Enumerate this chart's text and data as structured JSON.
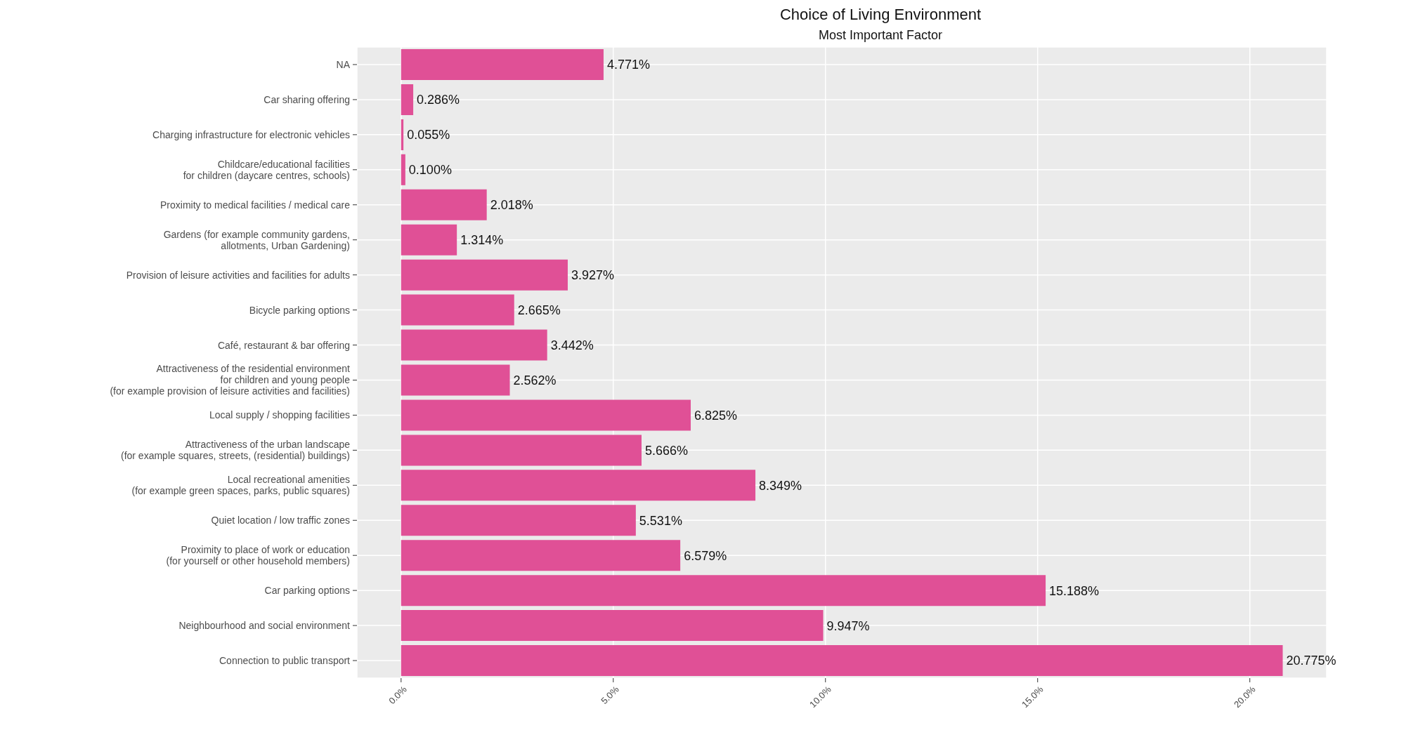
{
  "chart_data": {
    "type": "bar",
    "orientation": "horizontal",
    "title": "Choice of Living Environment",
    "subtitle": "Most Important Factor",
    "categories": [
      "NA",
      "Car sharing offering",
      "Charging infrastructure for electronic vehicles",
      "Childcare/educational facilities\nfor children (daycare centres, schools)",
      "Proximity to medical facilities / medical care",
      "Gardens (for example community gardens,\nallotments, Urban Gardening)",
      "Provision of leisure activities and facilities for adults",
      "Bicycle parking options",
      "Café, restaurant & bar offering",
      "Attractiveness of the residential environment\nfor children and young people\n(for example provision of leisure activities and facilities)",
      "Local supply / shopping facilities",
      "Attractiveness of the urban landscape\n(for example squares, streets, (residential) buildings)",
      "Local recreational amenities\n(for example green spaces, parks, public squares)",
      "Quiet location / low traffic zones",
      "Proximity to place of work or education\n(for yourself or other household members)",
      "Car parking options",
      "Neighbourhood and social environment",
      "Connection to public transport"
    ],
    "values": [
      4.771,
      0.286,
      0.055,
      0.1,
      2.018,
      1.314,
      3.927,
      2.665,
      3.442,
      2.562,
      6.825,
      5.666,
      8.349,
      5.531,
      6.579,
      15.188,
      9.947,
      20.775
    ],
    "value_labels": [
      "4.771%",
      "0.286%",
      "0.055%",
      "0.100%",
      "2.018%",
      "1.314%",
      "3.927%",
      "2.665%",
      "3.442%",
      "2.562%",
      "6.825%",
      "5.666%",
      "8.349%",
      "5.531%",
      "6.579%",
      "15.188%",
      "9.947%",
      "20.775%"
    ],
    "color": "#e05096",
    "xlim": [
      -1.04,
      21.81
    ],
    "xticks": [
      {
        "value": 0,
        "label": "0.0%"
      },
      {
        "value": 5,
        "label": "5.0%"
      },
      {
        "value": 10,
        "label": "10.0%"
      },
      {
        "value": 15,
        "label": "15.0%"
      },
      {
        "value": 20,
        "label": "20.0%"
      }
    ],
    "grid": true
  }
}
